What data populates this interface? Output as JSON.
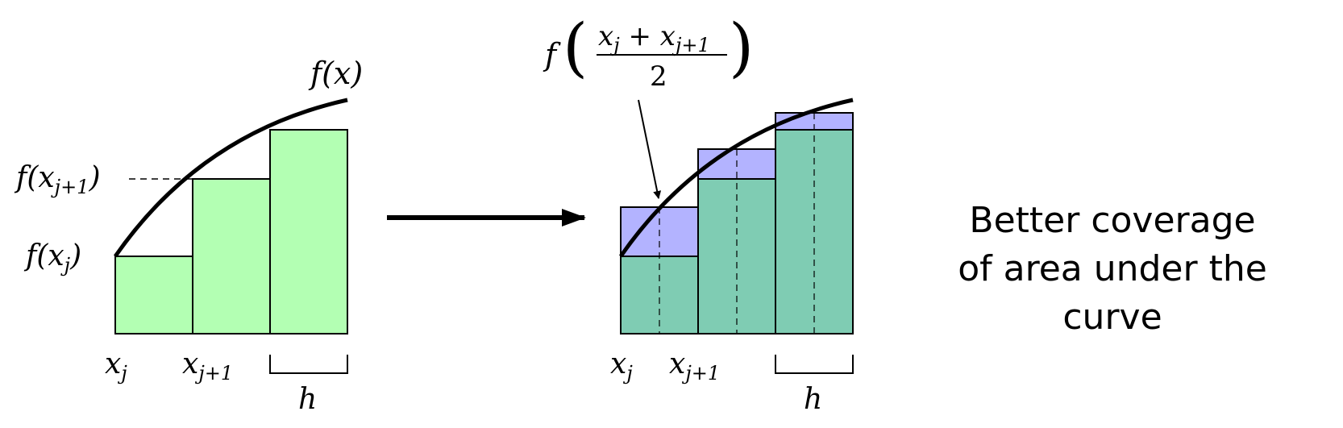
{
  "colors": {
    "left_bar_fill": "#b3ffb3",
    "midpoint_fill": "#b3b3ff",
    "overlap_fill": "#7fccb3",
    "outline": "#000000"
  },
  "left_panel": {
    "curve_label": "f(x)",
    "f_xj1_label": "f(x_{j+1})",
    "f_xj_label": "f(x_j)",
    "x_j_label": "x_j",
    "x_j1_label": "x_{j+1}",
    "h_label": "h"
  },
  "right_panel": {
    "midpoint_formula": "f((x_j + x_{j+1})/2)",
    "x_j_label": "x_j",
    "x_j1_label": "x_{j+1}",
    "h_label": "h"
  },
  "annotation": {
    "line1": "Better coverage",
    "line2": "of area under the curve"
  },
  "transition_arrow": "right-arrow"
}
